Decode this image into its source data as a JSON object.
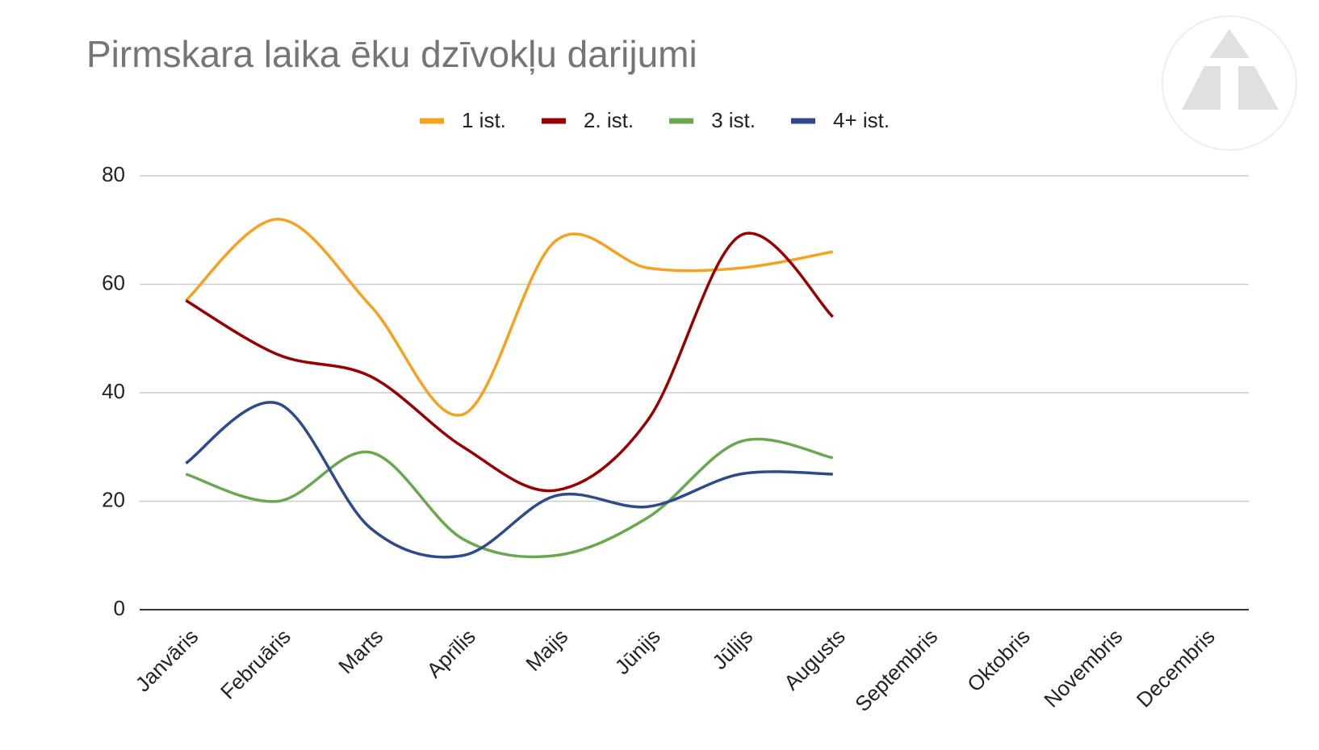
{
  "chart_data": {
    "type": "line",
    "title": "Pirmskara laika ēku dzīvokļu darijumi",
    "categories": [
      "Janvāris",
      "Februāris",
      "Marts",
      "Aprīlis",
      "Maijs",
      "Jūnijs",
      "Jūlijs",
      "Augusts",
      "Septembris",
      "Oktobris",
      "Novembris",
      "Decembris"
    ],
    "series": [
      {
        "name": "1 ist.",
        "color": "#f4a21f",
        "values": [
          57,
          72,
          56,
          36,
          68,
          63,
          63,
          66,
          null,
          null,
          null,
          null
        ]
      },
      {
        "name": "2. ist.",
        "color": "#990000",
        "values": [
          57,
          47,
          43,
          30,
          22,
          35,
          69,
          54,
          null,
          null,
          null,
          null
        ]
      },
      {
        "name": "3 ist.",
        "color": "#6aa84f",
        "values": [
          25,
          20,
          29,
          13,
          10,
          17,
          31,
          28,
          null,
          null,
          null,
          null
        ]
      },
      {
        "name": "4+ ist.",
        "color": "#2e4a8c",
        "values": [
          27,
          38,
          15,
          10,
          21,
          19,
          25,
          25,
          null,
          null,
          null,
          null
        ]
      }
    ],
    "ylim": [
      0,
      80
    ],
    "yticks": [
      0,
      20,
      40,
      60,
      80
    ],
    "grid": true,
    "legend": "top"
  }
}
